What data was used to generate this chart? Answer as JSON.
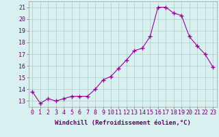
{
  "x": [
    0,
    1,
    2,
    3,
    4,
    5,
    6,
    7,
    8,
    9,
    10,
    11,
    12,
    13,
    14,
    15,
    16,
    17,
    18,
    19,
    20,
    21,
    22,
    23
  ],
  "y": [
    13.8,
    12.8,
    13.2,
    13.0,
    13.2,
    13.4,
    13.4,
    13.4,
    14.0,
    14.8,
    15.1,
    15.8,
    16.5,
    17.3,
    17.5,
    18.5,
    21.0,
    21.0,
    20.5,
    20.3,
    18.5,
    17.7,
    17.0,
    15.9
  ],
  "line_color": "#990099",
  "marker": "+",
  "marker_size": 4,
  "bg_color": "#d8f0f0",
  "grid_color": "#b0c8c8",
  "xlabel": "Windchill (Refroidissement éolien,°C)",
  "xlabel_fontsize": 6.5,
  "ylim": [
    12.5,
    21.5
  ],
  "xlim": [
    -0.5,
    23.5
  ],
  "yticks": [
    13,
    14,
    15,
    16,
    17,
    18,
    19,
    20,
    21
  ],
  "xtick_labels": [
    "0",
    "1",
    "2",
    "3",
    "4",
    "5",
    "6",
    "7",
    "8",
    "9",
    "10",
    "11",
    "12",
    "13",
    "14",
    "15",
    "16",
    "17",
    "18",
    "19",
    "20",
    "21",
    "22",
    "23"
  ],
  "tick_fontsize": 6.0,
  "line_width": 0.8,
  "marker_linewidth": 1.0
}
